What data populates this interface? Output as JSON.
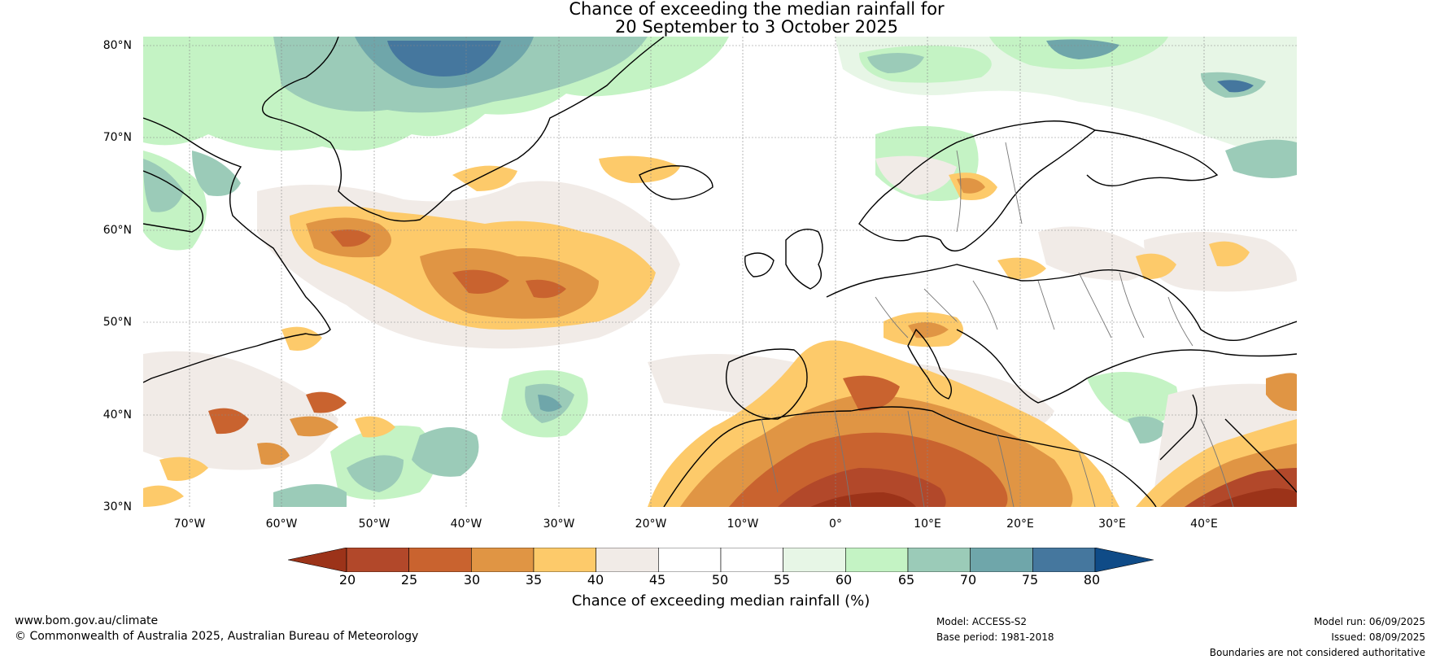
{
  "title": {
    "line1": "Chance of exceeding the median rainfall for",
    "line2": "20 September to 3 October 2025"
  },
  "map": {
    "lat_labels": [
      "80°N",
      "70°N",
      "60°N",
      "50°N",
      "40°N",
      "30°N"
    ],
    "lon_labels": [
      "70°W",
      "60°W",
      "50°W",
      "40°W",
      "30°W",
      "20°W",
      "10°W",
      "0°",
      "10°E",
      "20°E",
      "30°E",
      "40°E"
    ],
    "lat_range": [
      30,
      81
    ],
    "lon_range": [
      -75,
      50
    ]
  },
  "colorbar": {
    "ticks": [
      "20",
      "25",
      "30",
      "35",
      "40",
      "45",
      "50",
      "55",
      "60",
      "65",
      "70",
      "75",
      "80"
    ],
    "colors": [
      "#9c3319",
      "#b2482a",
      "#c9632f",
      "#e09544",
      "#fdca6a",
      "#f1ebe7",
      "#ffffff",
      "#ffffff",
      "#e7f6e6",
      "#c4f3c4",
      "#9bcbb8",
      "#6fa6aa",
      "#45779e",
      "#0f4b87"
    ],
    "label": "Chance of exceeding median rainfall (%)"
  },
  "footer": {
    "website": "www.bom.gov.au/climate",
    "copyright": "© Commonwealth of Australia 2025, Australian Bureau of Meteorology",
    "model": "Model: ACCESS-S2",
    "base_period": "Base period: 1981-2018",
    "model_run": "Model run: 06/09/2025",
    "issued": "Issued: 08/09/2025",
    "disclaimer": "Boundaries are not considered authoritative"
  }
}
